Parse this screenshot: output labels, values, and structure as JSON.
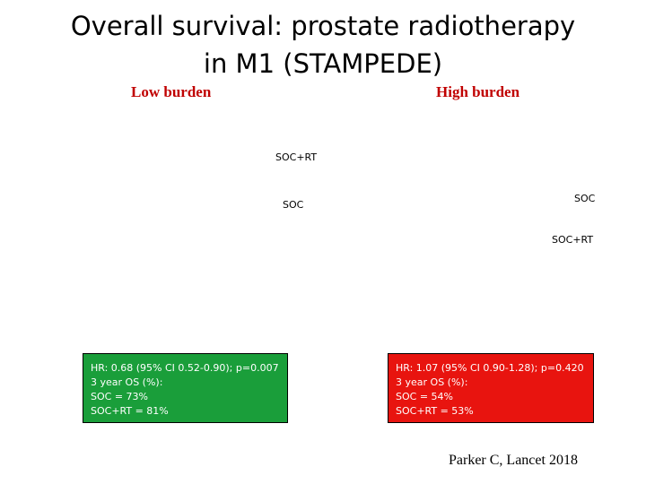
{
  "title": {
    "line1": "Overall survival: prostate radiotherapy",
    "line2": "in M1 (STAMPEDE)"
  },
  "low_burden": {
    "heading": "Low burden",
    "curve_labels": {
      "soc_rt": "SOC+RT",
      "soc": "SOC"
    },
    "box": {
      "color": "#1a9e3a",
      "hr": "HR: 0.68 (95% CI 0.52-0.90); p=0.007",
      "os_heading": "3 year OS (%):",
      "soc": "SOC = 73%",
      "soc_rt": "SOC+RT = 81%"
    }
  },
  "high_burden": {
    "heading": "High burden",
    "curve_labels": {
      "soc": "SOC",
      "soc_rt": "SOC+RT"
    },
    "box": {
      "color": "#e8140f",
      "hr": "HR: 1.07 (95% CI 0.90-1.28); p=0.420",
      "os_heading": "3 year OS (%):",
      "soc": "SOC = 54%",
      "soc_rt": "SOC+RT = 53%"
    }
  },
  "citation": "Parker C, Lancet 2018"
}
